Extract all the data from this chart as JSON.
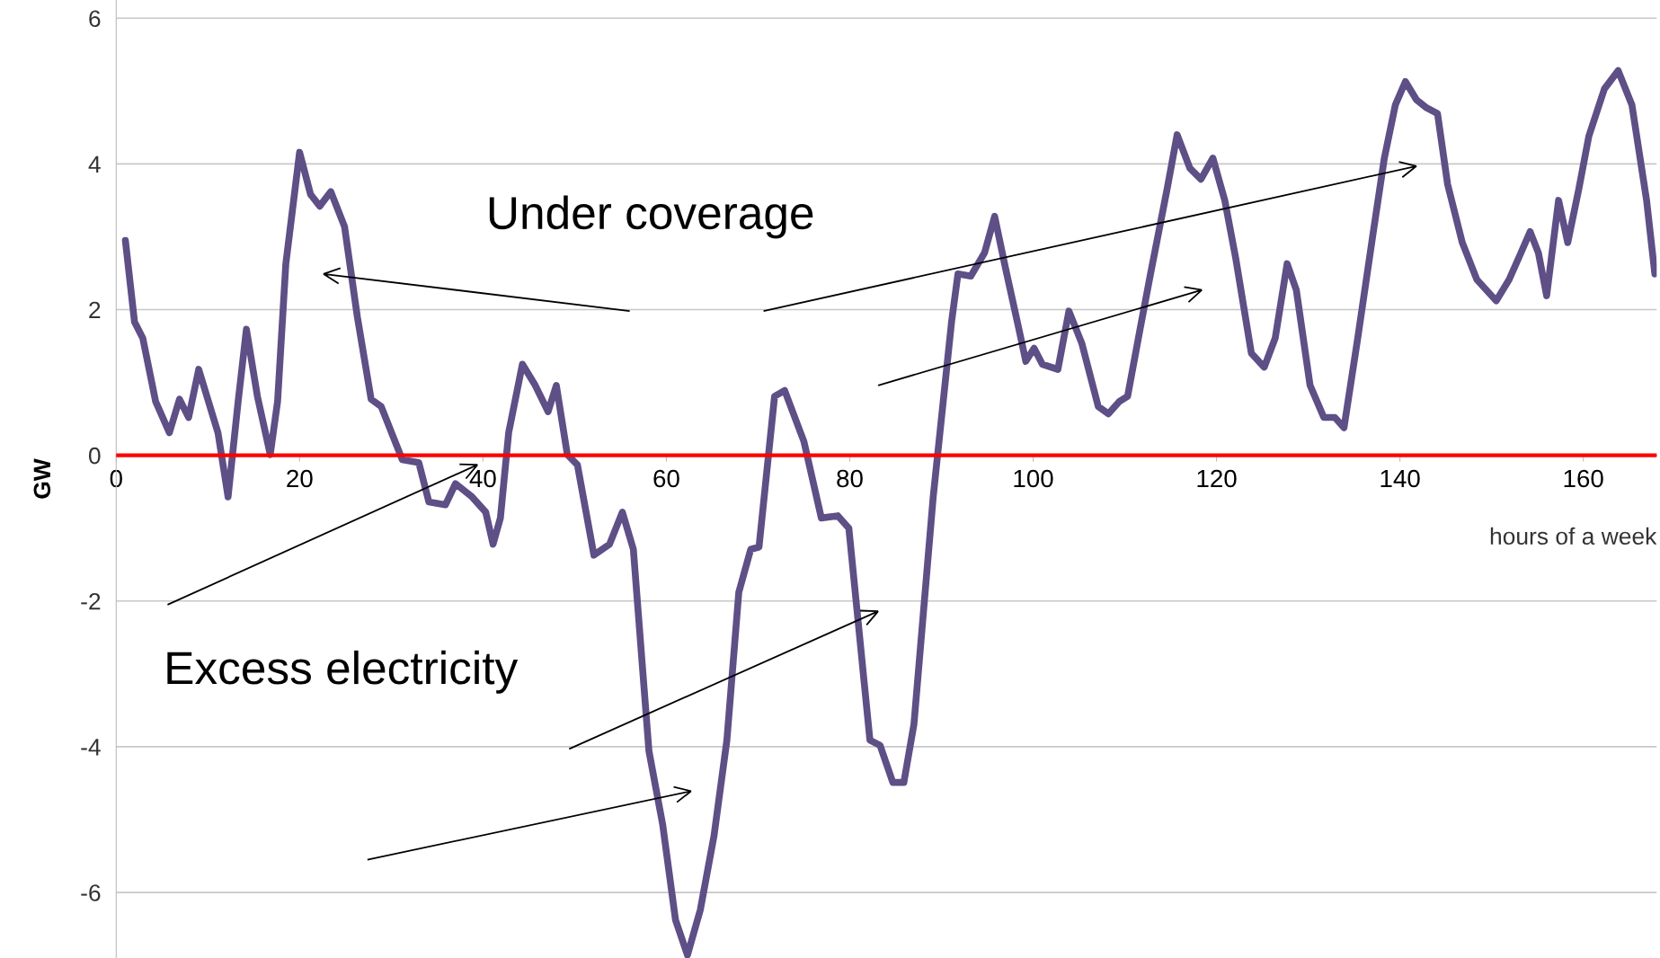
{
  "chart_data": {
    "type": "line",
    "xlabel": "hours of a week",
    "ylabel": "GW",
    "xlim": [
      0,
      168
    ],
    "ylim": [
      -6.9,
      6.25
    ],
    "xticks": [
      0,
      20,
      40,
      60,
      80,
      100,
      120,
      140,
      160
    ],
    "yticks": [
      -6,
      -4,
      -2,
      0,
      2,
      4,
      6
    ],
    "grid": "y",
    "series": [
      {
        "color": "#5e4f86",
        "x": [
          1.0,
          2.0,
          2.9,
          4.3,
          5.8,
          6.9,
          7.9,
          9.0,
          10.4,
          11.1,
          12.2,
          13.3,
          14.2,
          15.4,
          16.8,
          17.6,
          18.5,
          20.0,
          21.2,
          22.2,
          23.4,
          24.9,
          26.3,
          27.8,
          28.9,
          31.2,
          33.0,
          34.1,
          35.9,
          37.0,
          38.8,
          40.3,
          41.1,
          41.9,
          42.8,
          44.3,
          45.7,
          47.1,
          48.0,
          49.2,
          50.3,
          52.1,
          53.8,
          55.2,
          56.4,
          58.1,
          59.6,
          61.0,
          62.3,
          63.7,
          65.2,
          66.6,
          67.9,
          69.2,
          70.1,
          71.8,
          72.9,
          75.0,
          76.9,
          78.7,
          79.9,
          82.2,
          83.3,
          84.7,
          85.9,
          87.0,
          89.1,
          91.1,
          91.8,
          93.2,
          94.7,
          95.8,
          97.0,
          98.4,
          99.2,
          100.1,
          101.0,
          102.7,
          103.9,
          105.3,
          107.1,
          108.2,
          109.4,
          110.3,
          111.7,
          112.8,
          114.6,
          115.7,
          117.1,
          118.3,
          119.6,
          120.9,
          122.1,
          123.8,
          125.2,
          126.4,
          127.7,
          128.7,
          130.2,
          131.7,
          132.9,
          133.9,
          135.4,
          137.1,
          138.3,
          139.5,
          140.6,
          141.8,
          142.9,
          144.1,
          145.2,
          146.8,
          148.4,
          150.5,
          151.9,
          153.2,
          154.2,
          155.1,
          156.0,
          157.3,
          158.3,
          159.5,
          160.6,
          162.3,
          163.8,
          165.3,
          166.9,
          167.8
        ],
        "values": [
          2.95,
          1.83,
          1.61,
          0.74,
          0.31,
          0.77,
          0.52,
          1.18,
          0.6,
          0.31,
          -0.57,
          0.74,
          1.73,
          0.81,
          0.01,
          0.74,
          2.63,
          4.16,
          3.58,
          3.42,
          3.62,
          3.14,
          1.9,
          0.77,
          0.67,
          -0.06,
          -0.1,
          -0.64,
          -0.68,
          -0.39,
          -0.57,
          -0.78,
          -1.22,
          -0.86,
          0.31,
          1.25,
          0.96,
          0.6,
          0.96,
          0.01,
          -0.13,
          -1.37,
          -1.22,
          -0.78,
          -1.29,
          -4.06,
          -5.07,
          -6.38,
          -6.86,
          -6.24,
          -5.22,
          -3.91,
          -1.88,
          -1.29,
          -1.26,
          0.81,
          0.89,
          0.19,
          -0.86,
          -0.83,
          -1.0,
          -3.91,
          -3.98,
          -4.49,
          -4.49,
          -3.69,
          -0.57,
          1.83,
          2.49,
          2.46,
          2.78,
          3.28,
          2.56,
          1.76,
          1.29,
          1.47,
          1.25,
          1.18,
          1.98,
          1.54,
          0.67,
          0.57,
          0.74,
          0.81,
          1.76,
          2.49,
          3.65,
          4.4,
          3.94,
          3.79,
          4.08,
          3.5,
          2.7,
          1.4,
          1.21,
          1.61,
          2.63,
          2.27,
          0.96,
          0.52,
          0.52,
          0.38,
          1.61,
          3.07,
          4.08,
          4.81,
          5.13,
          4.88,
          4.77,
          4.69,
          3.72,
          2.92,
          2.41,
          2.12,
          2.41,
          2.78,
          3.07,
          2.78,
          2.19,
          3.5,
          2.92,
          3.65,
          4.38,
          5.03,
          5.28,
          4.81,
          3.5,
          2.49
        ]
      }
    ],
    "ref_lines": [
      {
        "axis": "y",
        "value": 0,
        "color": "#ff0000"
      }
    ],
    "annotations": [
      "Under coverage",
      "Excess electricity"
    ]
  }
}
